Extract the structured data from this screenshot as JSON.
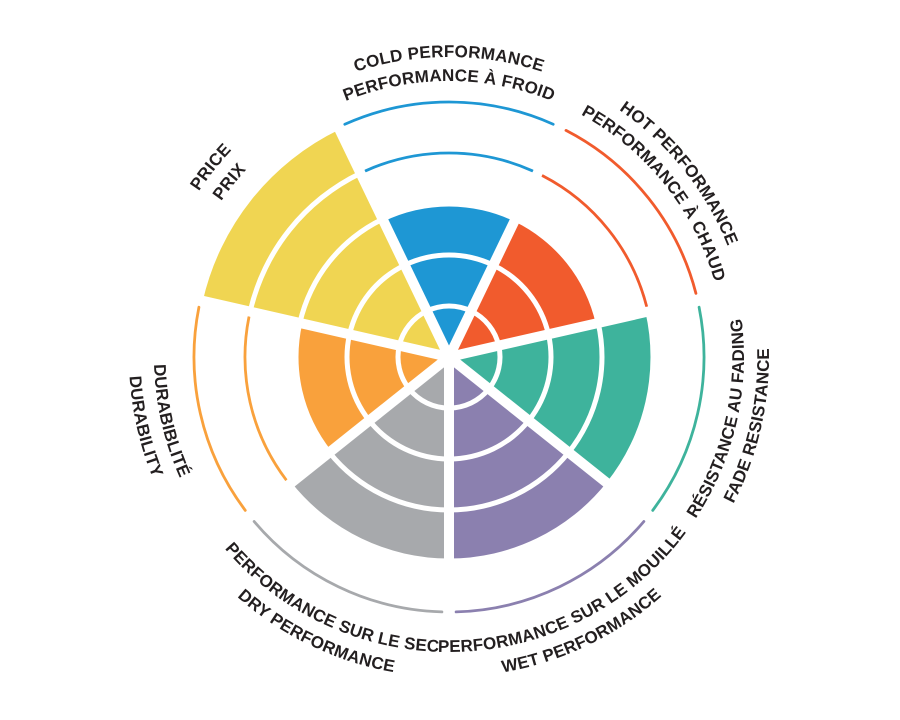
{
  "page": {
    "background": "#ffffff",
    "text_color": "#231f20"
  },
  "chart_data": {
    "type": "polar-bar",
    "description": "Seven-sector radial rating wheel; each sector filled from center to its score, remaining ring levels shown as thin arcs, bilingual curved labels (English outside, French inside)",
    "scale": {
      "min": 0,
      "max": 5,
      "rings": 5
    },
    "grid": "concentric ring gaps + radial white separators",
    "legend_position": "labels curved around perimeter",
    "categories": [
      {
        "id": "cold-performance",
        "label_en": "COLD PERFORMANCE",
        "label_fr": "PERFORMANCE À FROID",
        "value": 3,
        "color": "#1e97d4"
      },
      {
        "id": "hot-performance",
        "label_en": "HOT PERFORMANCE",
        "label_fr": "PERFORMANCE À CHAUD",
        "value": 3,
        "color": "#f15b2d"
      },
      {
        "id": "fade-resistance",
        "label_en": "FADE RESISTANCE",
        "label_fr": "RÉSISTANCE AU FADING",
        "value": 4,
        "color": "#3eb39c"
      },
      {
        "id": "wet-performance",
        "label_en": "WET PERFORMANCE",
        "label_fr": "PERFORMANCE SUR LE MOUILLÉ",
        "value": 4,
        "color": "#8b80af"
      },
      {
        "id": "dry-performance",
        "label_en": "DRY PERFORMANCE",
        "label_fr": "PERFORMANCE SUR LE SEC",
        "value": 4,
        "color": "#a7a9ac"
      },
      {
        "id": "durability",
        "label_en": "DURABILITY",
        "label_fr": "DURABIBLITÉ",
        "value": 3,
        "color": "#f9a13c"
      },
      {
        "id": "price",
        "label_en": "PRICE",
        "label_fr": "PRIX",
        "value": 5,
        "color": "#f0d552"
      }
    ]
  }
}
